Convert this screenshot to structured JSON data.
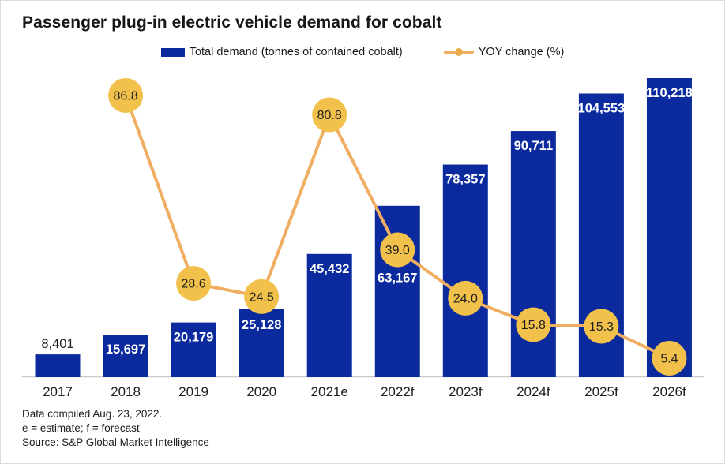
{
  "title": "Passenger plug-in electric vehicle demand for cobalt",
  "legend": {
    "bar_label": "Total demand (tonnes of contained cobalt)",
    "line_label": "YOY change (%)"
  },
  "colors": {
    "bar": "#0b2a9d",
    "bar_label_inside": "#ffffff",
    "bar_label_outside": "#1f1f1f",
    "line": "#efae62",
    "marker_fill": "#f1c14c",
    "marker_text": "#1f1f1f",
    "legend_dot": "#ecac4e",
    "axis_line": "#c9c9c9",
    "tick_text": "#1f1f1f"
  },
  "chart_data": {
    "type": "bar+line",
    "categories": [
      "2017",
      "2018",
      "2019",
      "2020",
      "2021e",
      "2022f",
      "2023f",
      "2024f",
      "2025f",
      "2026f"
    ],
    "series": [
      {
        "name": "Total demand (tonnes of contained cobalt)",
        "type": "bar",
        "values": [
          8401,
          15697,
          20179,
          25128,
          45432,
          63167,
          78357,
          90711,
          104553,
          110218
        ]
      },
      {
        "name": "YOY change (%)",
        "type": "line",
        "values": [
          null,
          86.8,
          28.6,
          24.5,
          80.8,
          39.0,
          24.0,
          15.8,
          15.3,
          5.4
        ]
      }
    ],
    "title": "Passenger plug-in electric vehicle demand for cobalt",
    "xlabel": "",
    "ylabel": "",
    "grid": false,
    "legend_position": "top-center",
    "value_labels_shown": true
  },
  "footnotes": [
    "Data compiled Aug. 23, 2022.",
    "e = estimate; f = forecast",
    "Source: S&P Global Market Intelligence"
  ]
}
